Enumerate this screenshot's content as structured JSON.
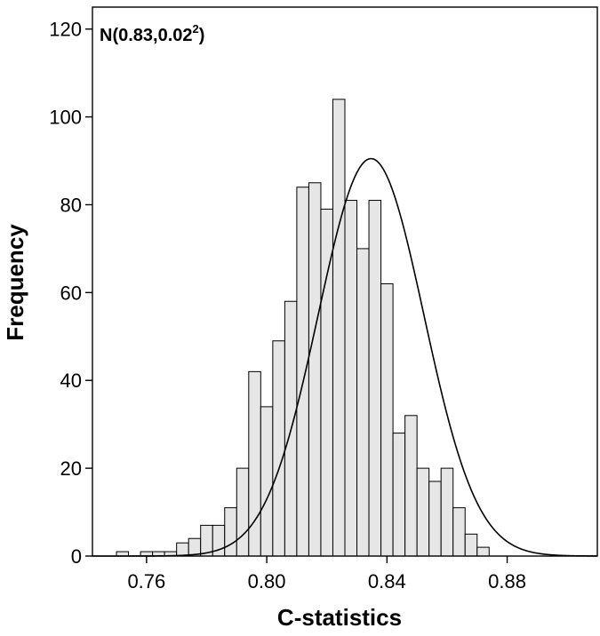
{
  "chart_data": {
    "type": "bar",
    "subtype": "histogram with fitted normal curve",
    "annotation": {
      "base": "N(0.83,0.02",
      "superscript": "2",
      "close": ")"
    },
    "xlabel": "C-statistics",
    "ylabel": "Frequency",
    "xlim": [
      0.742,
      0.91
    ],
    "ylim": [
      0,
      125
    ],
    "xticks": [
      {
        "value": 0.76,
        "label": "0.76"
      },
      {
        "value": 0.8,
        "label": "0.80"
      },
      {
        "value": 0.84,
        "label": "0.84"
      },
      {
        "value": 0.88,
        "label": "0.88"
      }
    ],
    "yticks": [
      {
        "value": 0,
        "label": "0"
      },
      {
        "value": 20,
        "label": "20"
      },
      {
        "value": 40,
        "label": "40"
      },
      {
        "value": 60,
        "label": "60"
      },
      {
        "value": 80,
        "label": "80"
      },
      {
        "value": 100,
        "label": "100"
      },
      {
        "value": 120,
        "label": "120"
      }
    ],
    "bin_width": 0.004,
    "bins": [
      {
        "x0": 0.75,
        "count": 1
      },
      {
        "x0": 0.754,
        "count": 0
      },
      {
        "x0": 0.758,
        "count": 1
      },
      {
        "x0": 0.762,
        "count": 1
      },
      {
        "x0": 0.766,
        "count": 1
      },
      {
        "x0": 0.77,
        "count": 3
      },
      {
        "x0": 0.774,
        "count": 4
      },
      {
        "x0": 0.778,
        "count": 7
      },
      {
        "x0": 0.782,
        "count": 7
      },
      {
        "x0": 0.786,
        "count": 11
      },
      {
        "x0": 0.79,
        "count": 20
      },
      {
        "x0": 0.794,
        "count": 42
      },
      {
        "x0": 0.798,
        "count": 34
      },
      {
        "x0": 0.802,
        "count": 49
      },
      {
        "x0": 0.806,
        "count": 58
      },
      {
        "x0": 0.81,
        "count": 84
      },
      {
        "x0": 0.814,
        "count": 85
      },
      {
        "x0": 0.818,
        "count": 79
      },
      {
        "x0": 0.822,
        "count": 104
      },
      {
        "x0": 0.826,
        "count": 81
      },
      {
        "x0": 0.83,
        "count": 70
      },
      {
        "x0": 0.834,
        "count": 81
      },
      {
        "x0": 0.838,
        "count": 62
      },
      {
        "x0": 0.842,
        "count": 28
      },
      {
        "x0": 0.846,
        "count": 32
      },
      {
        "x0": 0.85,
        "count": 20
      },
      {
        "x0": 0.854,
        "count": 17
      },
      {
        "x0": 0.858,
        "count": 20
      },
      {
        "x0": 0.862,
        "count": 11
      },
      {
        "x0": 0.866,
        "count": 5
      },
      {
        "x0": 0.87,
        "count": 2
      }
    ],
    "normal_fit": {
      "mean": 0.8347,
      "sd": 0.0176,
      "peak": 90.5
    },
    "grid": false,
    "legend": "none",
    "bar_fill": "#e6e6e6",
    "line_color": "#000000"
  }
}
